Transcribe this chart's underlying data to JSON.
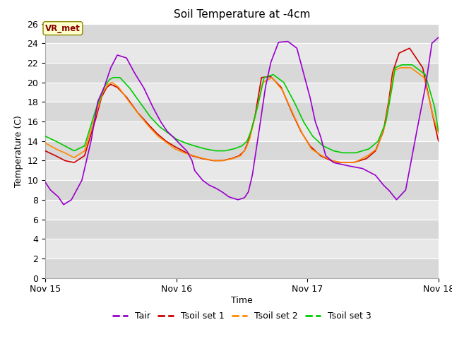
{
  "title": "Soil Temperature at -4cm",
  "xlabel": "Time",
  "ylabel": "Temperature (C)",
  "ylim": [
    0,
    26
  ],
  "yticks": [
    0,
    2,
    4,
    6,
    8,
    10,
    12,
    14,
    16,
    18,
    20,
    22,
    24,
    26
  ],
  "xlim": [
    0,
    3.0
  ],
  "xtick_positions": [
    0,
    1,
    2,
    3
  ],
  "xtick_labels": [
    "Nov 15",
    "Nov 16",
    "Nov 17",
    "Nov 18"
  ],
  "fig_bg_color": "#ffffff",
  "plot_bg_color": "#e8e8e8",
  "line_colors": {
    "Tair": "#9900cc",
    "Tsoil1": "#cc0000",
    "Tsoil2": "#ff8800",
    "Tsoil3": "#00cc00"
  },
  "legend_labels": [
    "Tair",
    "Tsoil set 1",
    "Tsoil set 2",
    "Tsoil set 3"
  ],
  "annotation_text": "VR_met",
  "annot_bbox_fc": "#ffffcc",
  "annot_bbox_ec": "#888800",
  "annot_text_color": "#880000"
}
